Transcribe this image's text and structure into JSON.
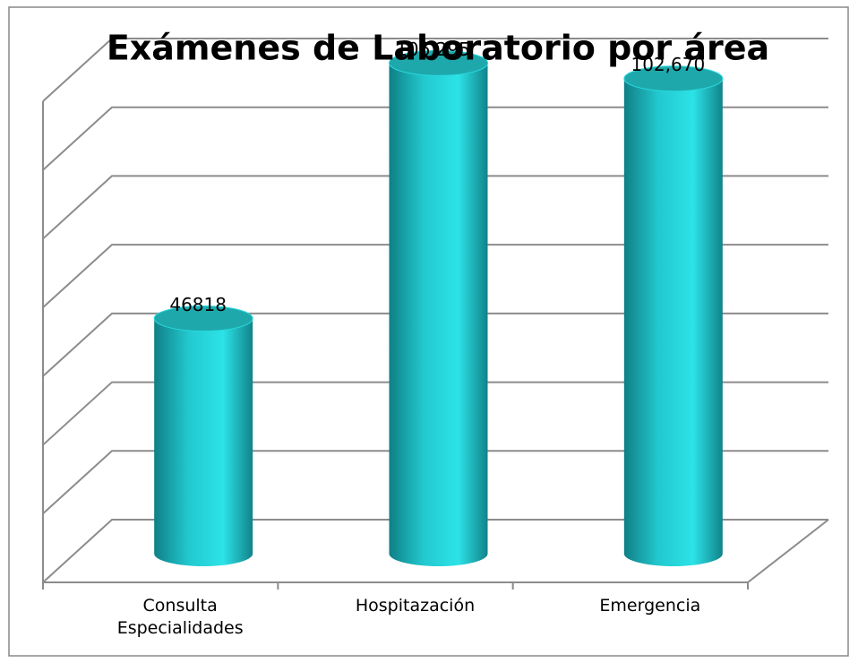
{
  "chart_data": {
    "type": "bar3d",
    "title": "Exámenes de Laboratorio por área",
    "categories": [
      "Consulta Especialidades",
      "Hospitazación",
      "Emergencia"
    ],
    "values": [
      46818,
      106295,
      102670
    ],
    "value_labels": [
      "46818",
      "106,295",
      "102,670"
    ],
    "color": "#27d9de",
    "ylim": [
      0,
      112000
    ],
    "yticks": [
      0,
      16000,
      32000,
      48000,
      64000,
      80000,
      96000,
      112000
    ],
    "grid": true
  }
}
